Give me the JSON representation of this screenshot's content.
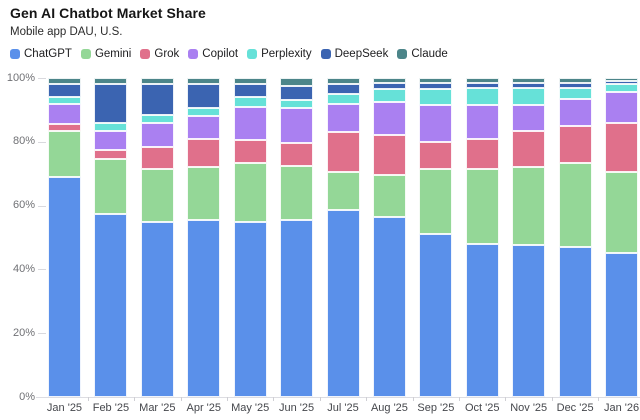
{
  "header": {
    "title": "Gen AI Chatbot Market Share",
    "subtitle": "Mobile app DAU, U.S."
  },
  "chart_data": {
    "type": "bar",
    "stacked": true,
    "units": "%",
    "title": "Gen AI Chatbot Market Share",
    "subtitle": "Mobile app DAU, U.S.",
    "legend_position": "top",
    "grid": false,
    "ylim": [
      0,
      100
    ],
    "y_ticks": [
      {
        "label": "0%",
        "value": 0
      },
      {
        "label": "20%",
        "value": 20
      },
      {
        "label": "40%",
        "value": 40
      },
      {
        "label": "60%",
        "value": 60
      },
      {
        "label": "80%",
        "value": 80
      },
      {
        "label": "100%",
        "value": 100
      }
    ],
    "categories": [
      "Jan '25",
      "Feb '25",
      "Mar '25",
      "Apr '25",
      "May '25",
      "Jun '25",
      "Jul '25",
      "Aug '25",
      "Sep '25",
      "Oct '25",
      "Nov '25",
      "Dec '25",
      "Jan '26"
    ],
    "series": [
      {
        "name": "ChatGPT",
        "color": "#5a90ea",
        "values": [
          69,
          57.5,
          55,
          55.5,
          55,
          55.5,
          58.5,
          56.5,
          51,
          48,
          47.5,
          47,
          45
        ]
      },
      {
        "name": "Gemini",
        "color": "#94d797",
        "values": [
          14.5,
          17,
          16.5,
          16.5,
          18.5,
          17,
          12,
          13,
          20.5,
          23.5,
          24.5,
          26.5,
          25.5
        ]
      },
      {
        "name": "Grok",
        "color": "#e0708b",
        "values": [
          2,
          3,
          7,
          9,
          7,
          7,
          12.5,
          12.5,
          8.5,
          9.5,
          11.5,
          11.5,
          15.5
        ]
      },
      {
        "name": "Copilot",
        "color": "#aa80f1",
        "values": [
          6.5,
          6,
          7.5,
          7,
          10.5,
          11,
          9,
          10.5,
          11.5,
          10.5,
          8,
          8.5,
          9.5
        ]
      },
      {
        "name": "Perplexity",
        "color": "#66e1d8",
        "values": [
          2,
          2.5,
          2.5,
          2.5,
          3,
          2.5,
          3,
          4,
          5,
          5.5,
          5.5,
          3.5,
          2.5
        ]
      },
      {
        "name": "DeepSeek",
        "color": "#3b64b1",
        "values": [
          4,
          12,
          9.5,
          7.5,
          4,
          4.5,
          3,
          2,
          2,
          1.5,
          1.5,
          1.5,
          1
        ]
      },
      {
        "name": "Claude",
        "color": "#4c8589",
        "values": [
          2,
          2,
          2,
          2,
          2,
          2.5,
          2,
          1.5,
          1.5,
          1.5,
          1.5,
          1.5,
          1
        ]
      }
    ]
  }
}
